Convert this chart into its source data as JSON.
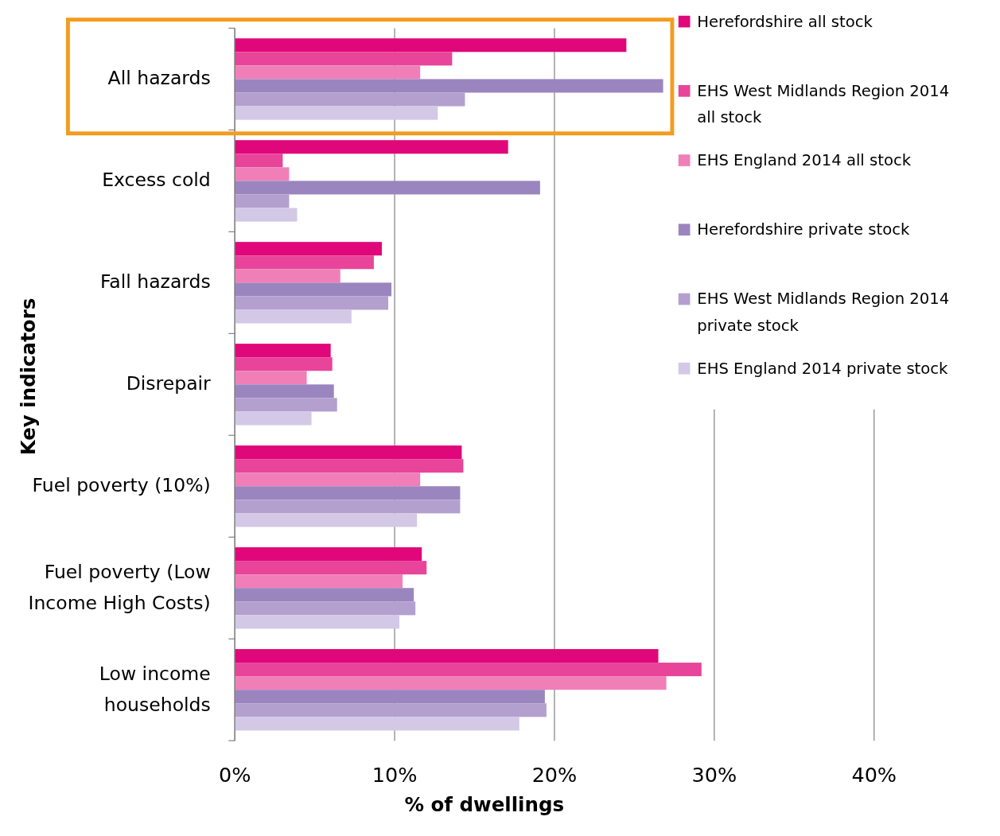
{
  "chart_data": {
    "type": "bar",
    "orientation": "horizontal",
    "xlabel": "% of dwellings",
    "ylabel": "Key indicators",
    "categories": [
      "All hazards",
      "Excess cold",
      "Fall hazards",
      "Disrepair",
      "Fuel poverty (10%)",
      "Fuel poverty (Low Income High Costs)",
      "Low income households"
    ],
    "series": [
      {
        "name": "Herefordshire all stock",
        "color": "#e0077a",
        "values": [
          24.5,
          17.1,
          9.2,
          6.0,
          14.2,
          11.7,
          26.5
        ]
      },
      {
        "name": "EHS West Midlands Region 2014 all stock",
        "color": "#e8449a",
        "values": [
          13.6,
          3.0,
          8.7,
          6.1,
          14.3,
          12.0,
          29.2
        ]
      },
      {
        "name": "EHS England 2014 all stock",
        "color": "#f07fb8",
        "values": [
          11.6,
          3.4,
          6.6,
          4.5,
          11.6,
          10.5,
          27.0
        ]
      },
      {
        "name": "Herefordshire private stock",
        "color": "#9b85bf",
        "values": [
          26.8,
          19.1,
          9.8,
          6.2,
          14.1,
          11.2,
          19.4
        ]
      },
      {
        "name": "EHS West Midlands Region 2014 private stock",
        "color": "#b3a0cf",
        "values": [
          14.4,
          3.4,
          9.6,
          6.4,
          14.1,
          11.3,
          19.5
        ]
      },
      {
        "name": "EHS England 2014 private stock",
        "color": "#d3c8e6",
        "values": [
          12.7,
          3.9,
          7.3,
          4.8,
          11.4,
          10.3,
          17.8
        ]
      }
    ],
    "xlim": [
      0,
      40
    ],
    "xticks": [
      {
        "value": 0,
        "label": "0%"
      },
      {
        "value": 10,
        "label": "10%"
      },
      {
        "value": 20,
        "label": "20%"
      },
      {
        "value": 30,
        "label": "30%"
      },
      {
        "value": 40,
        "label": "40%"
      }
    ],
    "grid": "x",
    "legend": "top right"
  }
}
